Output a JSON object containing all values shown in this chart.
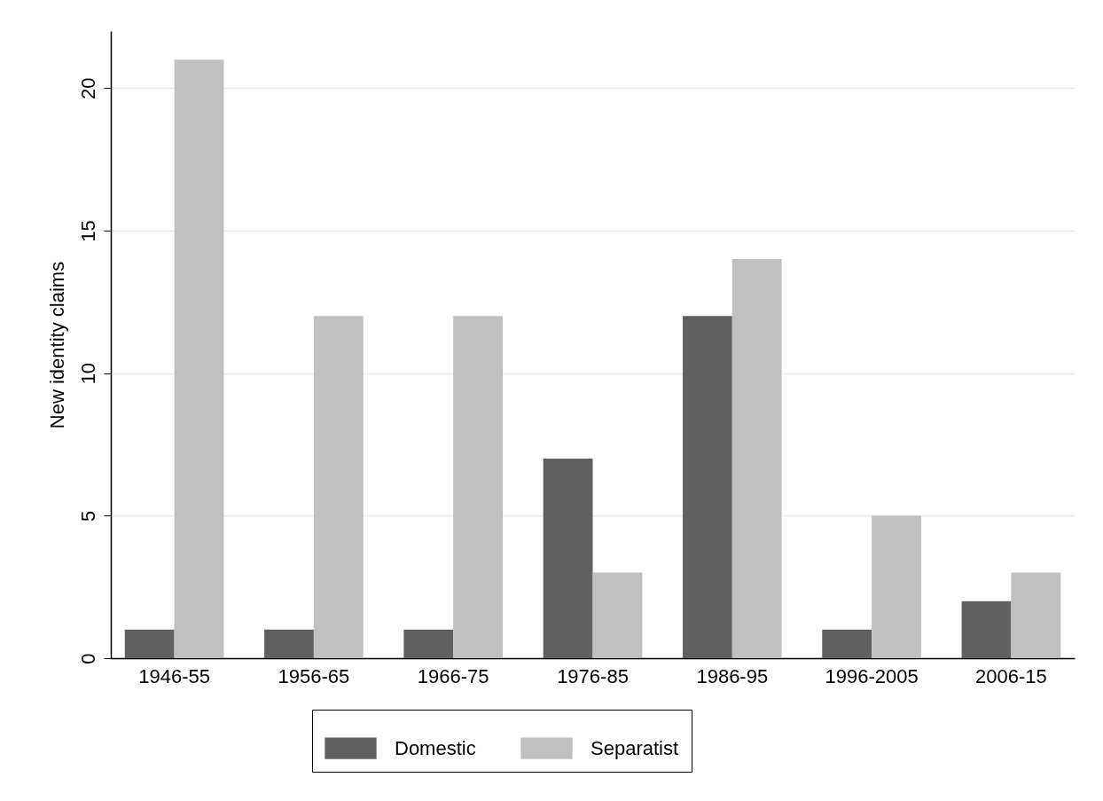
{
  "chart_data": {
    "type": "bar",
    "ylabel": "New identity claims",
    "categories": [
      "1946-55",
      "1956-65",
      "1966-75",
      "1976-85",
      "1986-95",
      "1996-2005",
      "2006-15"
    ],
    "series": [
      {
        "name": "Domestic",
        "color": "#606060",
        "values": [
          1,
          1,
          1,
          7,
          12,
          1,
          2
        ]
      },
      {
        "name": "Separatist",
        "color": "#c0c0c0",
        "values": [
          21,
          12,
          12,
          3,
          14,
          5,
          3
        ]
      }
    ],
    "ylim": [
      0,
      22
    ],
    "yticks": [
      0,
      5,
      10,
      15,
      20
    ],
    "grid": "y",
    "legend": "bottom"
  }
}
